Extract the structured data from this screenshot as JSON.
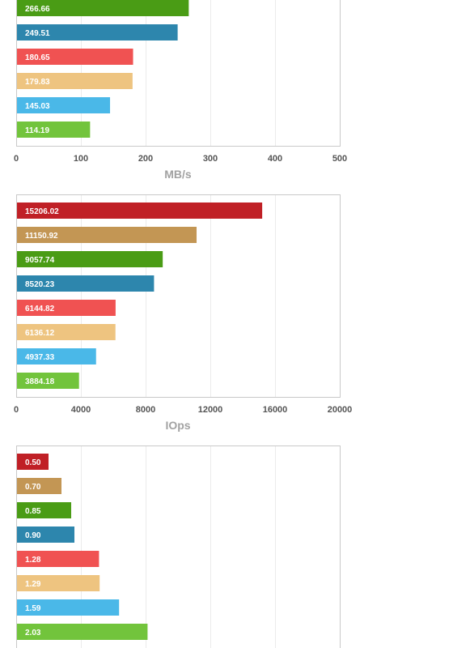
{
  "chart_data": [
    {
      "type": "bar",
      "orientation": "horizontal",
      "xlabel": "MB/s",
      "xlim": [
        0,
        500
      ],
      "ticks": [
        0,
        100,
        200,
        300,
        400,
        500
      ],
      "grid": true,
      "values": [
        266.66,
        249.51,
        180.65,
        179.83,
        145.03,
        114.19
      ],
      "labels": [
        "266.66",
        "249.51",
        "180.65",
        "179.83",
        "145.03",
        "114.19"
      ],
      "colors": [
        "#4a9c15",
        "#2d86ad",
        "#f05252",
        "#eec480",
        "#4ab8e8",
        "#72c43c"
      ]
    },
    {
      "type": "bar",
      "orientation": "horizontal",
      "xlabel": "IOps",
      "xlim": [
        0,
        20000
      ],
      "ticks": [
        0,
        4000,
        8000,
        12000,
        16000,
        20000
      ],
      "grid": true,
      "values": [
        15206.02,
        11150.92,
        9057.74,
        8520.23,
        6144.82,
        6136.12,
        4937.33,
        3884.18
      ],
      "labels": [
        "15206.02",
        "11150.92",
        "9057.74",
        "8520.23",
        "6144.82",
        "6136.12",
        "4937.33",
        "3884.18"
      ],
      "colors": [
        "#c02026",
        "#c39654",
        "#4a9c15",
        "#2d86ad",
        "#f05252",
        "#eec480",
        "#4ab8e8",
        "#72c43c"
      ]
    },
    {
      "type": "bar",
      "orientation": "horizontal",
      "xlabel": "",
      "xlim": [
        0,
        5
      ],
      "ticks": [],
      "grid": true,
      "values": [
        0.5,
        0.7,
        0.85,
        0.9,
        1.28,
        1.29,
        1.59,
        2.03
      ],
      "labels": [
        "0.50",
        "0.70",
        "0.85",
        "0.90",
        "1.28",
        "1.29",
        "1.59",
        "2.03"
      ],
      "colors": [
        "#c02026",
        "#c39654",
        "#4a9c15",
        "#2d86ad",
        "#f05252",
        "#eec480",
        "#4ab8e8",
        "#72c43c"
      ]
    }
  ]
}
